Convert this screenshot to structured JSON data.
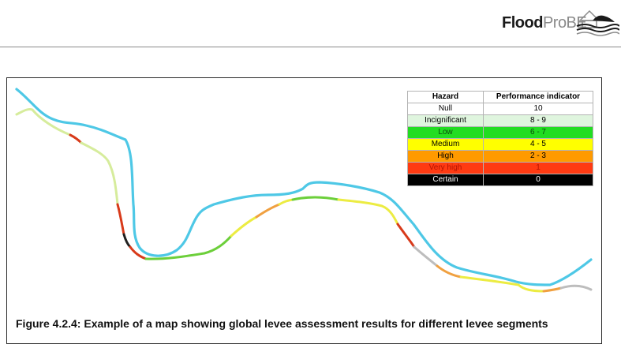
{
  "header": {
    "logo": {
      "bold": "Flood",
      "light": "ProBE"
    }
  },
  "legend": {
    "headers": [
      "Hazard",
      "Performance indicator"
    ],
    "rows": [
      {
        "hazard": "Null",
        "indicator": "10",
        "bg": "#ffffff",
        "fg": "#000000"
      },
      {
        "hazard": "Incignificant",
        "indicator": "8 - 9",
        "bg": "#dff5de",
        "fg": "#000000"
      },
      {
        "hazard": "Low",
        "indicator": "6 - 7",
        "bg": "#22dd22",
        "fg": "#0a4a0a"
      },
      {
        "hazard": "Medium",
        "indicator": "4 - 5",
        "bg": "#ffff00",
        "fg": "#000000"
      },
      {
        "hazard": "High",
        "indicator": "2 - 3",
        "bg": "#ff9a00",
        "fg": "#000000"
      },
      {
        "hazard": "Very high",
        "indicator": "1",
        "bg": "#ff3a12",
        "fg": "#b31400"
      },
      {
        "hazard": "Certain",
        "indicator": "0",
        "bg": "#000000",
        "fg": "#ffffff"
      }
    ]
  },
  "map": {
    "river_color": "#4ec8e6",
    "segment_colors": {
      "insignificant": "#d6ec9c",
      "low": "#6ccf3a",
      "medium": "#ecec42",
      "high": "#f0a040",
      "very_high": "#d83a1a",
      "certain": "#202020",
      "null": "#bdbdbd"
    }
  },
  "caption": "Figure 4.2.4: Example of a map showing global levee assessment results for different levee segments"
}
